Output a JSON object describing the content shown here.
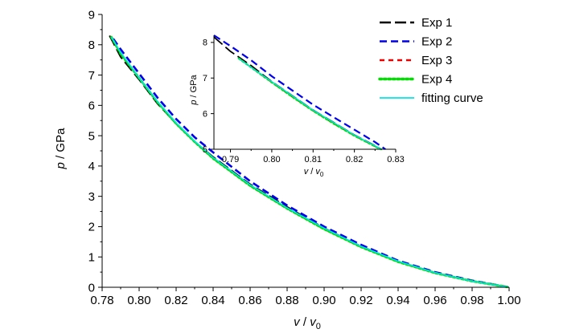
{
  "chart_data": [
    {
      "type": "line",
      "xlabel": "v / v0",
      "xlabel_parts": {
        "var": "v",
        "sep": " / ",
        "sub_var": "v",
        "sub": "0"
      },
      "ylabel": "p / GPa",
      "ylabel_parts": {
        "var": "p",
        "unit": " / GPa"
      },
      "xlim": [
        0.78,
        1.0
      ],
      "ylim": [
        0,
        9
      ],
      "x_ticks": [
        0.78,
        0.8,
        0.82,
        0.84,
        0.86,
        0.88,
        0.9,
        0.92,
        0.94,
        0.96,
        0.98,
        1.0
      ],
      "x_tick_labels": [
        "0.78",
        "0.80",
        "0.82",
        "0.84",
        "0.86",
        "0.88",
        "0.90",
        "0.92",
        "0.94",
        "0.96",
        "0.98",
        "1.00"
      ],
      "y_ticks": [
        0,
        1,
        2,
        3,
        4,
        5,
        6,
        7,
        8,
        9
      ],
      "y_tick_labels": [
        "0",
        "1",
        "2",
        "3",
        "4",
        "5",
        "6",
        "7",
        "8",
        "9"
      ],
      "grid": false,
      "legend_position": "top-right",
      "series": [
        {
          "name": "Exp 1",
          "color": "#000000",
          "style": "long-dash",
          "x": [
            0.784,
            0.79,
            0.8,
            0.81,
            0.82,
            0.83,
            0.84,
            0.86,
            0.88,
            0.9,
            0.92,
            0.94,
            0.96,
            0.98,
            1.0
          ],
          "y": [
            8.3,
            7.6,
            6.85,
            6.05,
            5.4,
            4.8,
            4.3,
            3.4,
            2.65,
            1.95,
            1.35,
            0.85,
            0.48,
            0.2,
            0.0
          ]
        },
        {
          "name": "Exp 2",
          "color": "#0000ee",
          "style": "dash",
          "x": [
            0.786,
            0.79,
            0.8,
            0.81,
            0.82,
            0.83,
            0.84,
            0.86,
            0.88,
            0.9,
            0.92,
            0.94,
            0.96,
            0.98,
            1.0
          ],
          "y": [
            8.2,
            7.85,
            7.05,
            6.25,
            5.55,
            4.95,
            4.45,
            3.5,
            2.7,
            2.0,
            1.4,
            0.88,
            0.5,
            0.22,
            0.0
          ]
        },
        {
          "name": "Exp 3",
          "color": "#ee0000",
          "style": "short-dash",
          "x": [
            0.785,
            0.79,
            0.8,
            0.81,
            0.82,
            0.83,
            0.84,
            0.86,
            0.88,
            0.9,
            0.92,
            0.94,
            0.96,
            0.98,
            1.0
          ],
          "y": [
            8.25,
            7.7,
            6.9,
            6.1,
            5.4,
            4.8,
            4.25,
            3.35,
            2.6,
            1.92,
            1.33,
            0.84,
            0.47,
            0.2,
            0.0
          ]
        },
        {
          "name": "Exp 4",
          "color": "#00dd00",
          "style": "dotted",
          "x": [
            0.785,
            0.79,
            0.8,
            0.81,
            0.82,
            0.83,
            0.84,
            0.86,
            0.88,
            0.9,
            0.92,
            0.94,
            0.96,
            0.98,
            1.0
          ],
          "y": [
            8.25,
            7.7,
            6.9,
            6.1,
            5.4,
            4.8,
            4.25,
            3.35,
            2.6,
            1.92,
            1.33,
            0.84,
            0.47,
            0.2,
            0.0
          ]
        },
        {
          "name": "fitting curve",
          "color": "#00e5e5",
          "style": "solid",
          "x": [
            0.785,
            0.79,
            0.8,
            0.81,
            0.82,
            0.83,
            0.84,
            0.86,
            0.88,
            0.9,
            0.92,
            0.94,
            0.96,
            0.98,
            1.0
          ],
          "y": [
            8.25,
            7.75,
            6.9,
            6.12,
            5.42,
            4.82,
            4.28,
            3.38,
            2.62,
            1.95,
            1.35,
            0.86,
            0.48,
            0.2,
            0.0
          ]
        }
      ]
    },
    {
      "type": "line",
      "role": "inset",
      "xlabel": "v / v0",
      "xlabel_parts": {
        "var": "v",
        "sep": " / ",
        "sub_var": "v",
        "sub": "0"
      },
      "ylabel": "p / GPa",
      "ylabel_parts": {
        "var": "p",
        "unit": " / GPa"
      },
      "xlim": [
        0.786,
        0.83
      ],
      "ylim": [
        5,
        8.2
      ],
      "x_ticks": [
        0.79,
        0.8,
        0.81,
        0.82,
        0.83
      ],
      "x_tick_labels": [
        "0.79",
        "0.80",
        "0.81",
        "0.82",
        "0.83"
      ],
      "y_ticks": [
        5,
        6,
        7,
        8
      ],
      "y_tick_labels": [
        "5",
        "6",
        "7",
        "8"
      ],
      "grid": false,
      "series": [
        {
          "name": "Exp 1",
          "color": "#000000",
          "style": "long-dash",
          "x": [
            0.786,
            0.79,
            0.795,
            0.8,
            0.805,
            0.81,
            0.815,
            0.82,
            0.825,
            0.8265
          ],
          "y": [
            8.15,
            7.75,
            7.35,
            6.9,
            6.5,
            6.1,
            5.75,
            5.4,
            5.1,
            5.0
          ]
        },
        {
          "name": "Exp 2",
          "color": "#0000ee",
          "style": "dash",
          "x": [
            0.786,
            0.79,
            0.795,
            0.8,
            0.805,
            0.81,
            0.815,
            0.82,
            0.825,
            0.8275
          ],
          "y": [
            8.2,
            7.9,
            7.5,
            7.05,
            6.65,
            6.25,
            5.9,
            5.55,
            5.2,
            5.0
          ]
        },
        {
          "name": "Exp 3",
          "color": "#ee0000",
          "style": "short-dash",
          "x": [
            0.792,
            0.795,
            0.8,
            0.805,
            0.81,
            0.815,
            0.82,
            0.825,
            0.8265
          ],
          "y": [
            7.55,
            7.3,
            6.88,
            6.47,
            6.08,
            5.72,
            5.38,
            5.08,
            5.0
          ]
        },
        {
          "name": "Exp 4",
          "color": "#00dd00",
          "style": "dotted",
          "x": [
            0.792,
            0.795,
            0.8,
            0.805,
            0.81,
            0.815,
            0.82,
            0.825,
            0.8265
          ],
          "y": [
            7.55,
            7.3,
            6.88,
            6.47,
            6.08,
            5.72,
            5.38,
            5.08,
            5.0
          ]
        },
        {
          "name": "fitting curve",
          "color": "#00e5e5",
          "style": "solid",
          "x": [
            0.792,
            0.795,
            0.8,
            0.805,
            0.81,
            0.815,
            0.82,
            0.825,
            0.8265
          ],
          "y": [
            7.55,
            7.3,
            6.9,
            6.5,
            6.1,
            5.75,
            5.4,
            5.1,
            5.0
          ]
        }
      ]
    }
  ]
}
